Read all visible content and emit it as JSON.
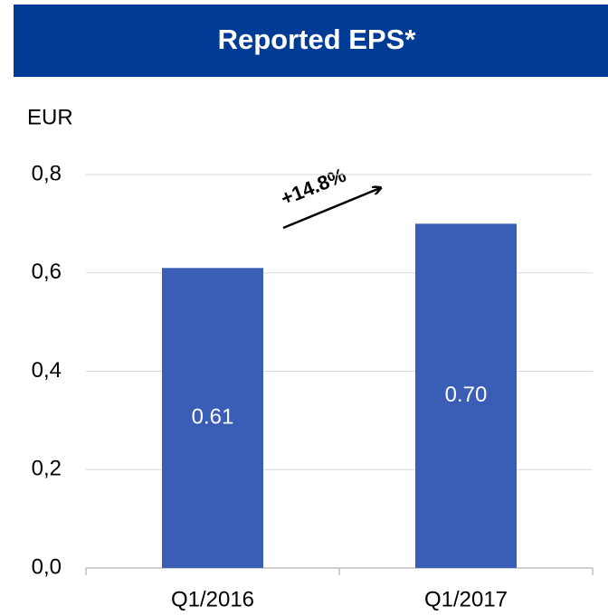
{
  "chart_data": {
    "type": "bar",
    "title": "Reported EPS*",
    "y_axis_label": "EUR",
    "annotation": "+14.8%",
    "categories": [
      "Q1/2016",
      "Q1/2017"
    ],
    "values": [
      0.61,
      0.7
    ],
    "value_labels": [
      "0.61",
      "0.70"
    ],
    "color": "#3a5db5",
    "ylim": [
      0,
      0.8
    ],
    "yticks": [
      {
        "value": 0,
        "label": "0,0"
      },
      {
        "value": 0.2,
        "label": "0,2"
      },
      {
        "value": 0.4,
        "label": "0,4"
      },
      {
        "value": 0.6,
        "label": "0,6"
      },
      {
        "value": 0.8,
        "label": "0,8"
      }
    ],
    "grid": true
  }
}
